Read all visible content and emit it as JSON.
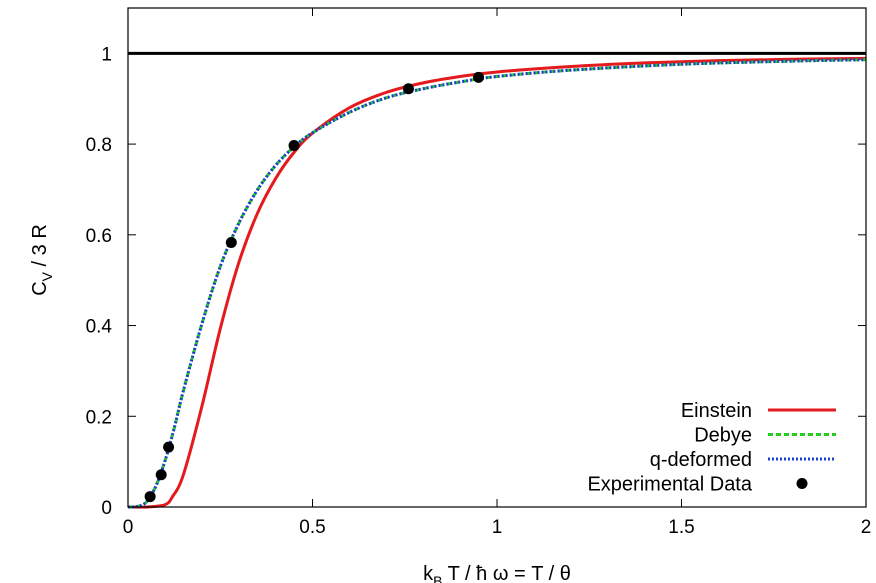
{
  "chart_data": {
    "type": "line",
    "title": "",
    "xlabel": {
      "main": "k",
      "sub": "B",
      "rest": " T / ħ ω = T / θ"
    },
    "ylabel": {
      "main": "C",
      "sub": "V",
      "rest": " / 3 R"
    },
    "xlim": [
      0,
      2
    ],
    "ylim": [
      0,
      1.1
    ],
    "xticks": [
      0,
      0.5,
      1,
      1.5,
      2
    ],
    "xtick_labels": [
      "0",
      "0.5",
      "1",
      "1.5",
      "2"
    ],
    "yticks": [
      0,
      0.2,
      0.4,
      0.6,
      0.8,
      1
    ],
    "ytick_labels": [
      "0",
      "0.2",
      "0.4",
      "0.6",
      "0.8",
      "1"
    ],
    "grid": false,
    "legend_position": "bottom-right",
    "reference_line": {
      "y": 1,
      "color": "#000000"
    },
    "series": [
      {
        "name": "Einstein",
        "kind": "line",
        "color": "#e41a1c",
        "dash": "solid",
        "x": [
          0.0,
          0.05,
          0.1,
          0.12,
          0.15,
          0.2,
          0.25,
          0.3,
          0.35,
          0.4,
          0.45,
          0.5,
          0.6,
          0.7,
          0.8,
          0.9,
          1.0,
          1.2,
          1.4,
          1.6,
          1.8,
          2.0
        ],
        "y": [
          0.0,
          0.0,
          0.005,
          0.022,
          0.071,
          0.221,
          0.393,
          0.538,
          0.646,
          0.724,
          0.782,
          0.824,
          0.88,
          0.914,
          0.935,
          0.949,
          0.959,
          0.971,
          0.979,
          0.984,
          0.987,
          0.989
        ]
      },
      {
        "name": "Debye",
        "kind": "line",
        "color": "#22cc22",
        "dash": "dashed",
        "x": [
          0.0,
          0.025,
          0.05,
          0.075,
          0.1,
          0.125,
          0.15,
          0.2,
          0.25,
          0.3,
          0.35,
          0.4,
          0.45,
          0.5,
          0.6,
          0.7,
          0.8,
          0.9,
          1.0,
          1.2,
          1.5,
          1.8,
          2.0
        ],
        "y": [
          0.0,
          0.001,
          0.011,
          0.045,
          0.101,
          0.173,
          0.256,
          0.403,
          0.53,
          0.625,
          0.698,
          0.753,
          0.794,
          0.825,
          0.87,
          0.902,
          0.922,
          0.937,
          0.949,
          0.963,
          0.976,
          0.983,
          0.986
        ]
      },
      {
        "name": "q-deformed",
        "kind": "line",
        "color": "#1f3fcf",
        "dash": "dotted",
        "x": [
          0.0,
          0.025,
          0.05,
          0.075,
          0.1,
          0.125,
          0.15,
          0.2,
          0.25,
          0.3,
          0.35,
          0.4,
          0.45,
          0.5,
          0.6,
          0.7,
          0.8,
          0.9,
          1.0,
          1.2,
          1.5,
          1.8,
          2.0
        ],
        "y": [
          0.0,
          0.001,
          0.011,
          0.045,
          0.101,
          0.173,
          0.256,
          0.403,
          0.53,
          0.625,
          0.698,
          0.753,
          0.794,
          0.825,
          0.87,
          0.902,
          0.922,
          0.937,
          0.949,
          0.963,
          0.976,
          0.983,
          0.986
        ]
      },
      {
        "name": "Experimental Data",
        "kind": "points",
        "color": "#000000",
        "x": [
          0.06,
          0.09,
          0.11,
          0.28,
          0.45,
          0.76,
          0.95
        ],
        "y": [
          0.023,
          0.071,
          0.132,
          0.583,
          0.797,
          0.922,
          0.947
        ]
      }
    ]
  }
}
